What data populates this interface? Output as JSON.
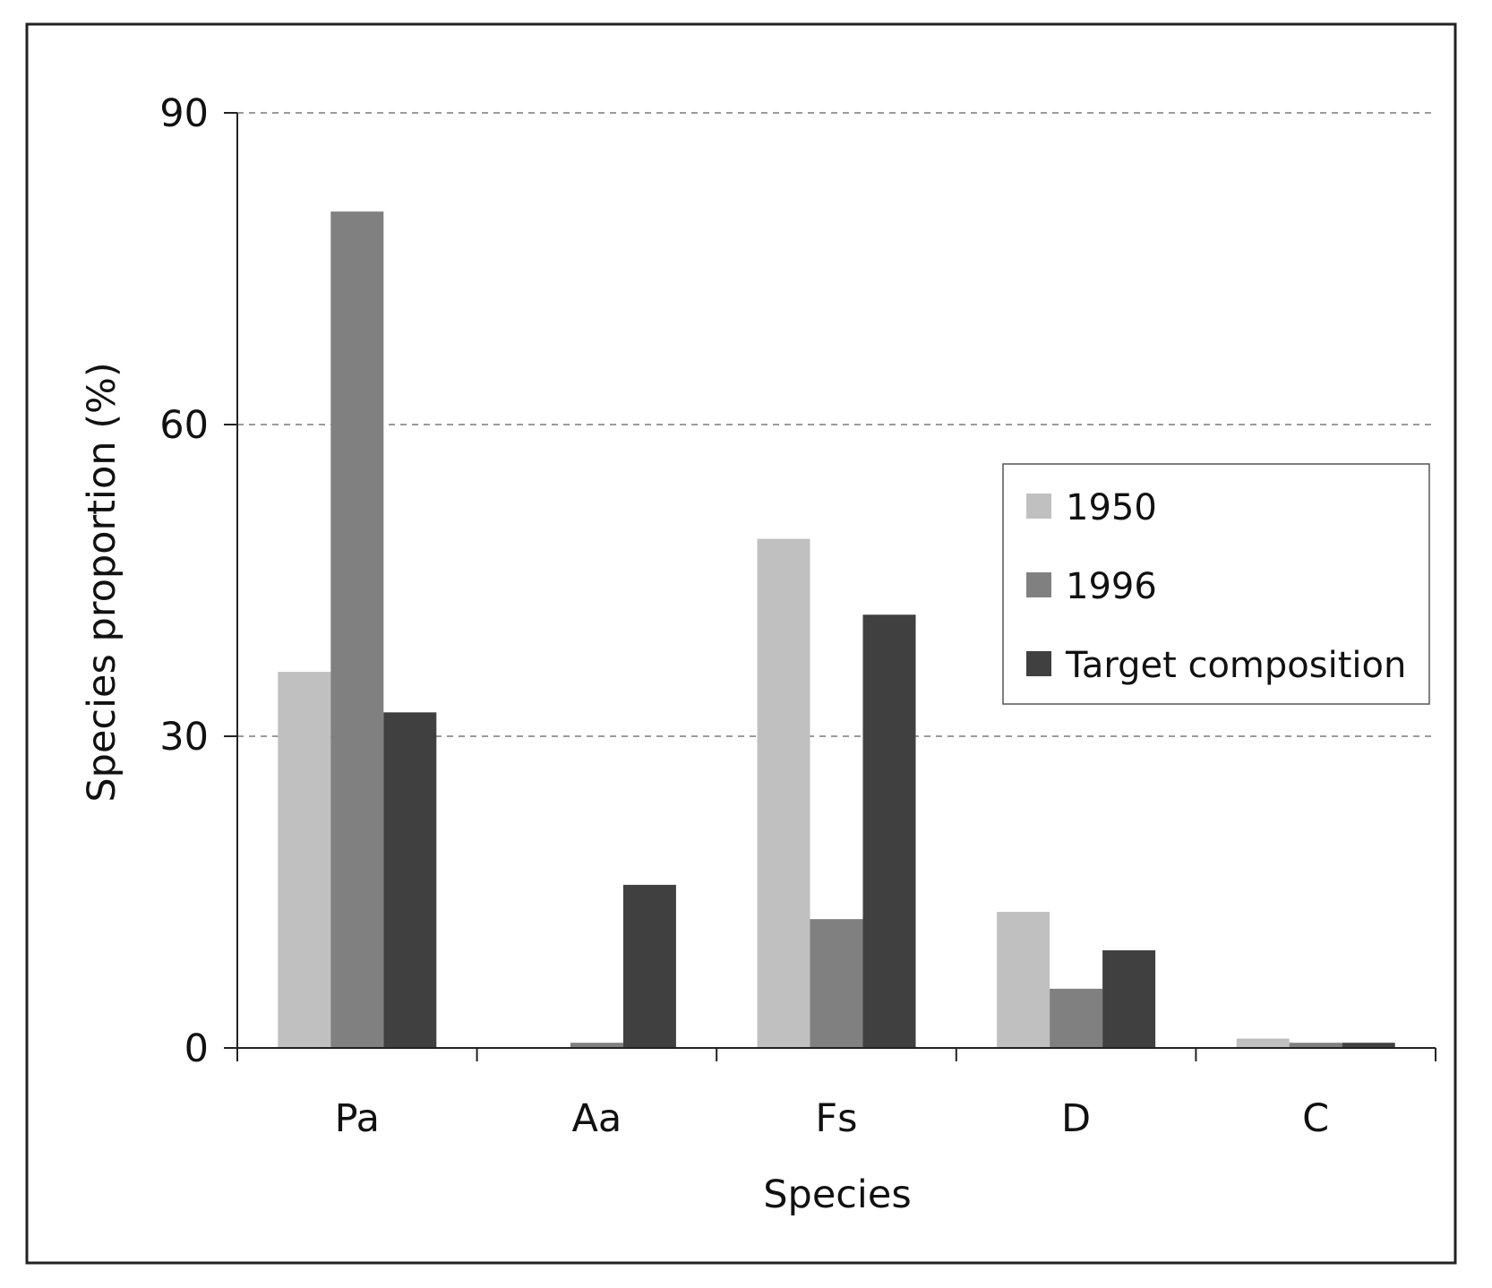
{
  "chart_data": {
    "type": "bar",
    "title": "",
    "xlabel": "Species",
    "ylabel": "Species proportion (%)",
    "ylim": [
      0,
      90
    ],
    "yticks": [
      0,
      30,
      60,
      90
    ],
    "grid": "horizontal dashed",
    "legend_position": "center-right",
    "categories": [
      "Pa",
      "Aa",
      "Fs",
      "D",
      "C"
    ],
    "series": [
      {
        "name": "1950",
        "color": "#c0c0c0",
        "values": [
          36.2,
          0,
          49.0,
          13.1,
          0.9
        ]
      },
      {
        "name": "1996",
        "color": "#808080",
        "values": [
          80.5,
          0.5,
          12.4,
          5.7,
          0.5
        ]
      },
      {
        "name": "Target composition",
        "color": "#404040",
        "values": [
          32.3,
          15.7,
          41.7,
          9.4,
          0.5
        ]
      }
    ]
  }
}
